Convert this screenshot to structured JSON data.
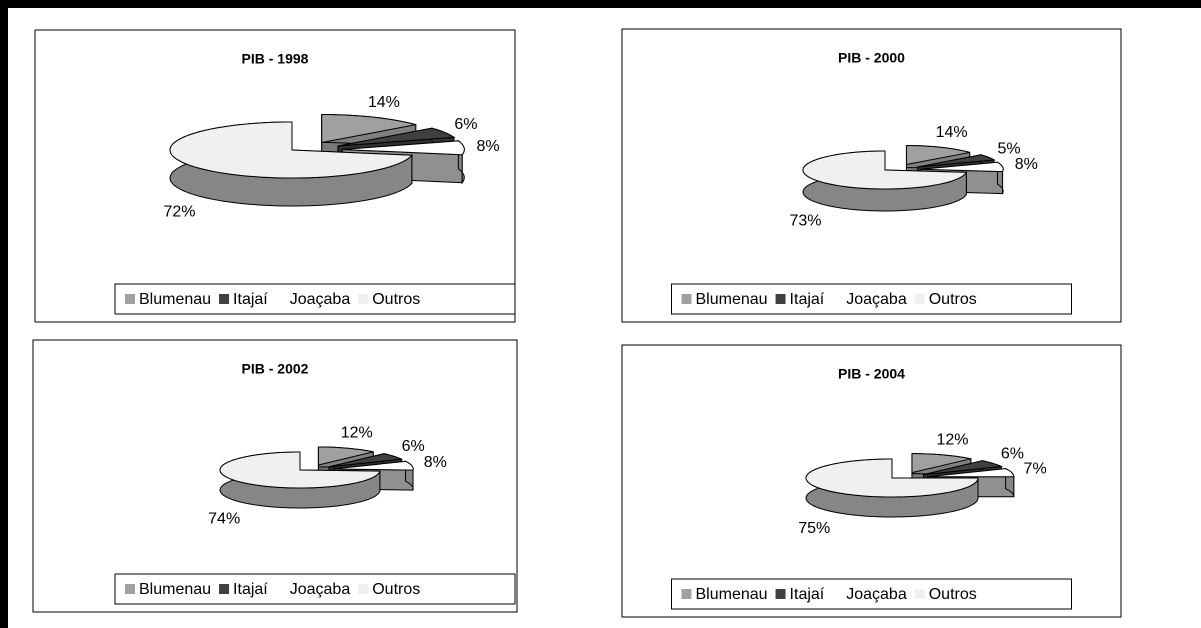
{
  "chart_data": [
    {
      "type": "pie",
      "title": "PIB - 1998",
      "categories": [
        "Blumenau",
        "Itajaí",
        "Joaçaba",
        "Outros"
      ],
      "values": [
        14,
        6,
        8,
        72
      ],
      "value_labels": [
        "14%",
        "6%",
        "8%",
        "72%"
      ],
      "colors": [
        "#a0a0a0",
        "#404040",
        "#ffffff",
        "#f0f0f0"
      ]
    },
    {
      "type": "pie",
      "title": "PIB - 2000",
      "categories": [
        "Blumenau",
        "Itajaí",
        "Joaçaba",
        "Outros"
      ],
      "values": [
        14,
        5,
        8,
        73
      ],
      "value_labels": [
        "14%",
        "5%",
        "8%",
        "73%"
      ],
      "colors": [
        "#a0a0a0",
        "#404040",
        "#ffffff",
        "#f0f0f0"
      ]
    },
    {
      "type": "pie",
      "title": "PIB - 2002",
      "categories": [
        "Blumenau",
        "Itajaí",
        "Joaçaba",
        "Outros"
      ],
      "values": [
        12,
        6,
        8,
        74
      ],
      "value_labels": [
        "12%",
        "6%",
        "8%",
        "74%"
      ],
      "colors": [
        "#a0a0a0",
        "#404040",
        "#ffffff",
        "#f0f0f0"
      ]
    },
    {
      "type": "pie",
      "title": "PIB - 2004",
      "categories": [
        "Blumenau",
        "Itajaí",
        "Joaçaba",
        "Outros"
      ],
      "values": [
        12,
        6,
        7,
        75
      ],
      "value_labels": [
        "12%",
        "6%",
        "7%",
        "75%"
      ],
      "colors": [
        "#a0a0a0",
        "#404040",
        "#ffffff",
        "#f0f0f0"
      ]
    }
  ]
}
